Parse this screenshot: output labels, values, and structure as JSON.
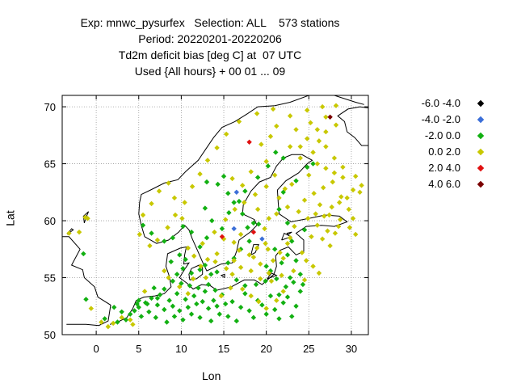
{
  "title_lines": [
    "Exp: mnwc_pysurfex   Selection: ALL    573 stations",
    "Period: 20220201-20220206",
    "Td2m deficit bias [deg C] at  07 UTC",
    "Used {All hours} + 00 01 ... 09"
  ],
  "chart_data": {
    "type": "scatter",
    "xlabel": "Lon",
    "ylabel": "Lat",
    "xlim": [
      -4,
      32
    ],
    "ylim": [
      50,
      71
    ],
    "xticks": [
      "0",
      "5",
      "10",
      "15",
      "20",
      "25",
      "30"
    ],
    "yticks": [
      "50",
      "55",
      "60",
      "65",
      "70"
    ],
    "grid": true,
    "legend_position": "right",
    "series": [
      {
        "name": "-6.0 -4.0",
        "color": "#000000",
        "points": []
      },
      {
        "name": "-4.0 -2.0",
        "color": "#3c6fd8",
        "points": [
          [
            16.5,
            62.5
          ],
          [
            19.5,
            58.4
          ],
          [
            16.2,
            59.3
          ]
        ]
      },
      {
        "name": "-2.0 0.0",
        "color": "#12b012",
        "points": [
          [
            2.5,
            51.1
          ],
          [
            3.5,
            51.3
          ],
          [
            4.0,
            51.8
          ],
          [
            4.5,
            52.1
          ],
          [
            5.0,
            52.4
          ],
          [
            5.3,
            51.6
          ],
          [
            5.8,
            52.8
          ],
          [
            6.2,
            52.0
          ],
          [
            6.5,
            53.2
          ],
          [
            7.0,
            51.5
          ],
          [
            7.2,
            52.6
          ],
          [
            7.5,
            53.5
          ],
          [
            8.0,
            52.2
          ],
          [
            8.3,
            51.1
          ],
          [
            8.6,
            53.0
          ],
          [
            9.0,
            52.5
          ],
          [
            9.2,
            51.6
          ],
          [
            9.5,
            53.6
          ],
          [
            9.8,
            52.1
          ],
          [
            10.2,
            51.3
          ],
          [
            10.5,
            53.1
          ],
          [
            10.8,
            52.4
          ],
          [
            11.2,
            51.8
          ],
          [
            11.5,
            53.4
          ],
          [
            11.8,
            52.7
          ],
          [
            12.2,
            51.5
          ],
          [
            12.5,
            52.9
          ],
          [
            12.8,
            53.8
          ],
          [
            13.2,
            52.3
          ],
          [
            13.5,
            51.2
          ],
          [
            13.8,
            53.0
          ],
          [
            14.2,
            52.5
          ],
          [
            14.5,
            51.8
          ],
          [
            14.8,
            53.5
          ],
          [
            15.2,
            52.7
          ],
          [
            15.5,
            51.6
          ],
          [
            16.0,
            52.9
          ],
          [
            16.5,
            51.2
          ],
          [
            17.0,
            52.4
          ],
          [
            17.5,
            53.6
          ],
          [
            18.0,
            52.1
          ],
          [
            18.5,
            51.5
          ],
          [
            19.0,
            53.0
          ],
          [
            19.5,
            52.6
          ],
          [
            20.0,
            51.8
          ],
          [
            20.5,
            53.4
          ],
          [
            21.0,
            52.2
          ],
          [
            21.5,
            51.4
          ],
          [
            22.0,
            52.8
          ],
          [
            22.5,
            53.3
          ],
          [
            23.0,
            51.6
          ],
          [
            23.5,
            52.5
          ],
          [
            24.0,
            53.8
          ],
          [
            24.3,
            54.4
          ],
          [
            23.2,
            54.6
          ],
          [
            22.3,
            54.2
          ],
          [
            21.2,
            54.9
          ],
          [
            20.5,
            55.6
          ],
          [
            21.8,
            56.3
          ],
          [
            22.5,
            57.0
          ],
          [
            9.5,
            55.3
          ],
          [
            10.2,
            55.8
          ],
          [
            8.8,
            56.4
          ],
          [
            9.8,
            57.0
          ],
          [
            10.5,
            56.6
          ],
          [
            11.2,
            55.4
          ],
          [
            12.2,
            55.7
          ],
          [
            12.8,
            56.1
          ],
          [
            14.2,
            55.5
          ],
          [
            13.5,
            55.3
          ],
          [
            11.0,
            54.3
          ],
          [
            12.0,
            54.1
          ],
          [
            13.2,
            54.4
          ],
          [
            14.0,
            53.9
          ],
          [
            10.0,
            54.5
          ],
          [
            9.0,
            54.7
          ],
          [
            8.0,
            54.0
          ],
          [
            7.2,
            53.2
          ],
          [
            6.8,
            54.1
          ],
          [
            15.5,
            56.3
          ],
          [
            16.2,
            56.7
          ],
          [
            17.0,
            57.5
          ],
          [
            18.0,
            58.2
          ],
          [
            17.8,
            59.4
          ],
          [
            18.5,
            59.8
          ],
          [
            17.2,
            60.6
          ],
          [
            16.2,
            61.6
          ],
          [
            15.5,
            62.4
          ],
          [
            14.3,
            63.2
          ],
          [
            15.0,
            63.9
          ],
          [
            13.0,
            63.4
          ],
          [
            12.8,
            61.1
          ],
          [
            13.6,
            60.0
          ],
          [
            14.8,
            59.3
          ],
          [
            15.6,
            60.7
          ],
          [
            16.8,
            61.7
          ],
          [
            17.5,
            62.6
          ],
          [
            19.0,
            63.8
          ],
          [
            20.2,
            64.8
          ],
          [
            21.1,
            66.0
          ],
          [
            19.1,
            59.7
          ],
          [
            11.2,
            59.0
          ],
          [
            10.2,
            59.5
          ],
          [
            9.0,
            58.5
          ],
          [
            8.0,
            58.2
          ],
          [
            6.5,
            58.9
          ],
          [
            5.5,
            59.6
          ],
          [
            12.2,
            57.7
          ],
          [
            13.0,
            58.5
          ],
          [
            22.0,
            65.5
          ],
          [
            2.1,
            52.4
          ],
          [
            3.0,
            52.0
          ],
          [
            1.0,
            51.4
          ],
          [
            -1.2,
            53.1
          ],
          [
            -1.5,
            57.1
          ],
          [
            5.0,
            53.0
          ],
          [
            6.0,
            52.7
          ],
          [
            4.8,
            52.7
          ],
          [
            16.5,
            54.8
          ],
          [
            18.8,
            54.4
          ],
          [
            19.9,
            54.7
          ],
          [
            17.5,
            54.3
          ],
          [
            21.5,
            53.5
          ],
          [
            22.8,
            55.0
          ],
          [
            20.0,
            56.0
          ],
          [
            21.0,
            57.5
          ],
          [
            24.0,
            55.3
          ],
          [
            23.5,
            56.5
          ],
          [
            23.0,
            58.2
          ],
          [
            24.5,
            59.2
          ],
          [
            22.5,
            59.8
          ],
          [
            21.5,
            61.0
          ],
          [
            22.0,
            62.5
          ],
          [
            23.5,
            63.5
          ],
          [
            24.8,
            64.7
          ],
          [
            25.5,
            65.0
          ]
        ]
      },
      {
        "name": "0.0 2.0",
        "color": "#c8c800",
        "points": [
          [
            1.4,
            50.7
          ],
          [
            2.0,
            51.0
          ],
          [
            3.0,
            51.5
          ],
          [
            4.3,
            50.9
          ],
          [
            -2.0,
            59.0
          ],
          [
            -3.2,
            58.9
          ],
          [
            -1.0,
            60.2
          ],
          [
            -1.3,
            60.3
          ],
          [
            15.3,
            55.8
          ],
          [
            16.2,
            56.5
          ],
          [
            16.8,
            57.4
          ],
          [
            19.3,
            54.9
          ],
          [
            20.3,
            55.4
          ],
          [
            18.5,
            56.8
          ],
          [
            20.2,
            57.5
          ],
          [
            19.9,
            58.0
          ],
          [
            22.8,
            58.5
          ],
          [
            24.2,
            57.2
          ],
          [
            24.7,
            56.5
          ],
          [
            25.5,
            56.0
          ],
          [
            26.2,
            55.4
          ],
          [
            24.5,
            54.8
          ],
          [
            25.3,
            58.6
          ],
          [
            26.6,
            58.4
          ],
          [
            27.5,
            57.8
          ],
          [
            28.1,
            58.9
          ],
          [
            23.3,
            59.5
          ],
          [
            24.9,
            60.2
          ],
          [
            25.8,
            60.6
          ],
          [
            26.8,
            60.4
          ],
          [
            27.7,
            61.2
          ],
          [
            28.6,
            61.6
          ],
          [
            29.5,
            62.0
          ],
          [
            30.2,
            62.7
          ],
          [
            31.2,
            63.1
          ],
          [
            29.0,
            63.8
          ],
          [
            28.0,
            64.2
          ],
          [
            27.0,
            64.6
          ],
          [
            26.0,
            65.0
          ],
          [
            25.5,
            66.0
          ],
          [
            26.2,
            67.0
          ],
          [
            27.0,
            67.8
          ],
          [
            28.2,
            68.4
          ],
          [
            27.0,
            69.1
          ],
          [
            25.2,
            68.6
          ],
          [
            23.5,
            68.0
          ],
          [
            24.8,
            67.2
          ],
          [
            22.8,
            66.5
          ],
          [
            24.0,
            65.5
          ],
          [
            25.0,
            64.0
          ],
          [
            23.0,
            63.2
          ],
          [
            22.2,
            62.8
          ],
          [
            21.5,
            62.0
          ],
          [
            22.5,
            61.2
          ],
          [
            23.8,
            60.8
          ],
          [
            24.5,
            61.8
          ],
          [
            25.6,
            62.4
          ],
          [
            26.7,
            62.9
          ],
          [
            27.8,
            63.4
          ],
          [
            28.8,
            62.1
          ],
          [
            29.7,
            61.0
          ],
          [
            28.7,
            60.1
          ],
          [
            27.4,
            60.5
          ],
          [
            26.3,
            61.4
          ],
          [
            26.0,
            59.6
          ],
          [
            27.2,
            59.1
          ],
          [
            28.5,
            59.5
          ],
          [
            29.8,
            59.4
          ],
          [
            30.5,
            58.8
          ],
          [
            30.2,
            60.2
          ],
          [
            21.2,
            60.6
          ],
          [
            20.3,
            60.2
          ],
          [
            19.8,
            59.3
          ],
          [
            18.9,
            57.6
          ],
          [
            18.0,
            57.0
          ],
          [
            17.0,
            58.8
          ],
          [
            16.2,
            58.1
          ],
          [
            15.0,
            58.4
          ],
          [
            14.2,
            57.1
          ],
          [
            13.1,
            56.6
          ],
          [
            12.3,
            56.0
          ],
          [
            11.5,
            56.9
          ],
          [
            10.8,
            57.6
          ],
          [
            12.5,
            58.0
          ],
          [
            13.9,
            59.0
          ],
          [
            15.2,
            60.1
          ],
          [
            16.3,
            61.0
          ],
          [
            17.4,
            61.6
          ],
          [
            18.7,
            62.3
          ],
          [
            17.2,
            63.1
          ],
          [
            16.0,
            63.7
          ],
          [
            18.2,
            64.3
          ],
          [
            20.0,
            65.2
          ],
          [
            19.4,
            66.7
          ],
          [
            20.5,
            67.4
          ],
          [
            21.2,
            68.3
          ],
          [
            22.8,
            69.2
          ],
          [
            24.8,
            69.7
          ],
          [
            26.6,
            70.0
          ],
          [
            28.2,
            70.1
          ],
          [
            20.8,
            69.8
          ],
          [
            18.9,
            69.4
          ],
          [
            16.8,
            68.7
          ],
          [
            15.3,
            67.6
          ],
          [
            14.2,
            66.4
          ],
          [
            13.1,
            65.3
          ],
          [
            12.2,
            64.1
          ],
          [
            11.3,
            63.0
          ],
          [
            10.4,
            61.6
          ],
          [
            9.3,
            60.5
          ],
          [
            8.4,
            59.4
          ],
          [
            7.2,
            58.3
          ],
          [
            6.3,
            57.8
          ],
          [
            5.1,
            58.8
          ],
          [
            5.5,
            60.5
          ],
          [
            6.5,
            61.5
          ],
          [
            7.4,
            62.6
          ],
          [
            8.5,
            63.3
          ],
          [
            9.2,
            62.0
          ],
          [
            10.1,
            60.2
          ],
          [
            20.6,
            54.7
          ],
          [
            21.8,
            55.2
          ],
          [
            23.2,
            55.6
          ],
          [
            22.0,
            56.7
          ],
          [
            21.6,
            57.2
          ],
          [
            22.5,
            58.0
          ],
          [
            8.5,
            55.0
          ],
          [
            9.8,
            54.2
          ],
          [
            10.8,
            53.6
          ],
          [
            11.4,
            54.9
          ],
          [
            12.9,
            55.0
          ],
          [
            14.7,
            53.4
          ],
          [
            15.8,
            54.1
          ],
          [
            17.2,
            54.0
          ],
          [
            18.2,
            53.4
          ],
          [
            19.1,
            52.9
          ],
          [
            20.0,
            52.3
          ],
          [
            8.0,
            55.6
          ],
          [
            14.0,
            56.4
          ],
          [
            16.0,
            55.3
          ],
          [
            17.0,
            55.9
          ],
          [
            18.2,
            55.6
          ],
          [
            19.3,
            56.2
          ],
          [
            20.8,
            56.5
          ],
          [
            21.2,
            53.0
          ],
          [
            22.0,
            53.8
          ],
          [
            5.7,
            53.8
          ],
          [
            4.0,
            51.3
          ],
          [
            0.6,
            51.1
          ],
          [
            -0.6,
            52.3
          ],
          [
            29.0,
            64.7
          ],
          [
            30.5,
            63.9
          ],
          [
            31.0,
            62.5
          ],
          [
            28.0,
            65.5
          ],
          [
            27.0,
            66.5
          ],
          [
            26.0,
            68.0
          ],
          [
            24.0,
            66.5
          ],
          [
            21.0,
            64.0
          ],
          [
            20.0,
            63.0
          ],
          [
            19.0,
            61.0
          ]
        ]
      },
      {
        "name": "2.0 4.0",
        "color": "#e01010",
        "points": [
          [
            18.0,
            66.9
          ],
          [
            14.8,
            58.6
          ],
          [
            18.5,
            59.0
          ]
        ]
      },
      {
        "name": "4.0 6.0",
        "color": "#7a0000",
        "points": [
          [
            27.5,
            69.1
          ]
        ]
      }
    ]
  }
}
